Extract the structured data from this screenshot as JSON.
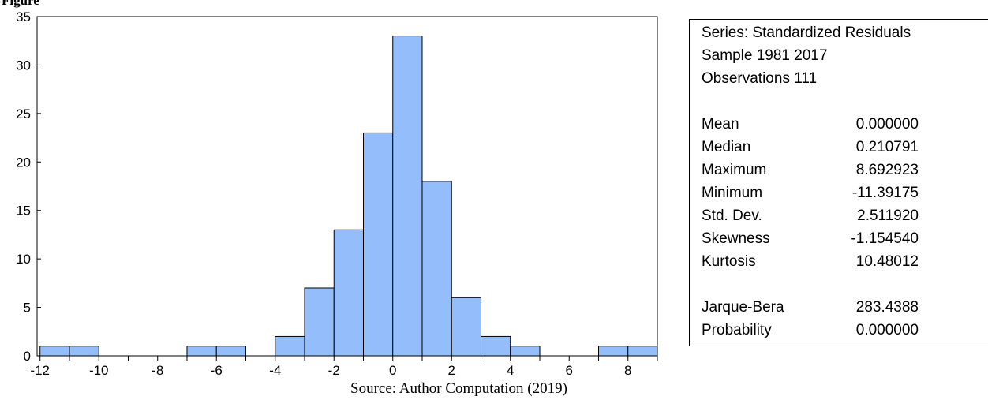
{
  "figure_label": "Figure",
  "source_note": "Source: Author Computation (2019)",
  "colors": {
    "bar_fill": "#94bdfb",
    "bar_stroke": "#000000"
  },
  "chart_data": {
    "type": "bar",
    "bin_edges": [
      -12,
      -11,
      -10,
      -9,
      -8,
      -7,
      -6,
      -5,
      -4,
      -3,
      -2,
      -1,
      0,
      1,
      2,
      3,
      4,
      5,
      6,
      7,
      8,
      9
    ],
    "values": [
      1,
      1,
      0,
      0,
      0,
      1,
      1,
      0,
      2,
      7,
      13,
      23,
      33,
      18,
      6,
      2,
      1,
      0,
      0,
      1,
      1
    ],
    "xlim": [
      -12.1,
      9
    ],
    "ylim": [
      0,
      35
    ],
    "x_ticks": [
      "-12",
      "-10",
      "-8",
      "-6",
      "-4",
      "-2",
      "0",
      "2",
      "4",
      "6",
      "8"
    ],
    "y_ticks": [
      "0",
      "5",
      "10",
      "15",
      "20",
      "25",
      "30",
      "35"
    ],
    "title": "",
    "xlabel": "",
    "ylabel": "",
    "grid": false
  },
  "stats": {
    "header": [
      "Series: Standardized Residuals",
      "Sample 1981 2017",
      "Observations 111"
    ],
    "rows": [
      {
        "name": "Mean",
        "value": "0.000000"
      },
      {
        "name": "Median",
        "value": "0.210791"
      },
      {
        "name": "Maximum",
        "value": "8.692923"
      },
      {
        "name": "Minimum",
        "value": "-11.39175"
      },
      {
        "name": "Std. Dev.",
        "value": "2.511920"
      },
      {
        "name": "Skewness",
        "value": "-1.154540"
      },
      {
        "name": "Kurtosis",
        "value": "10.48012"
      }
    ],
    "tests": [
      {
        "name": "Jarque-Bera",
        "value": "283.4388"
      },
      {
        "name": "Probability",
        "value": "0.000000"
      }
    ]
  }
}
